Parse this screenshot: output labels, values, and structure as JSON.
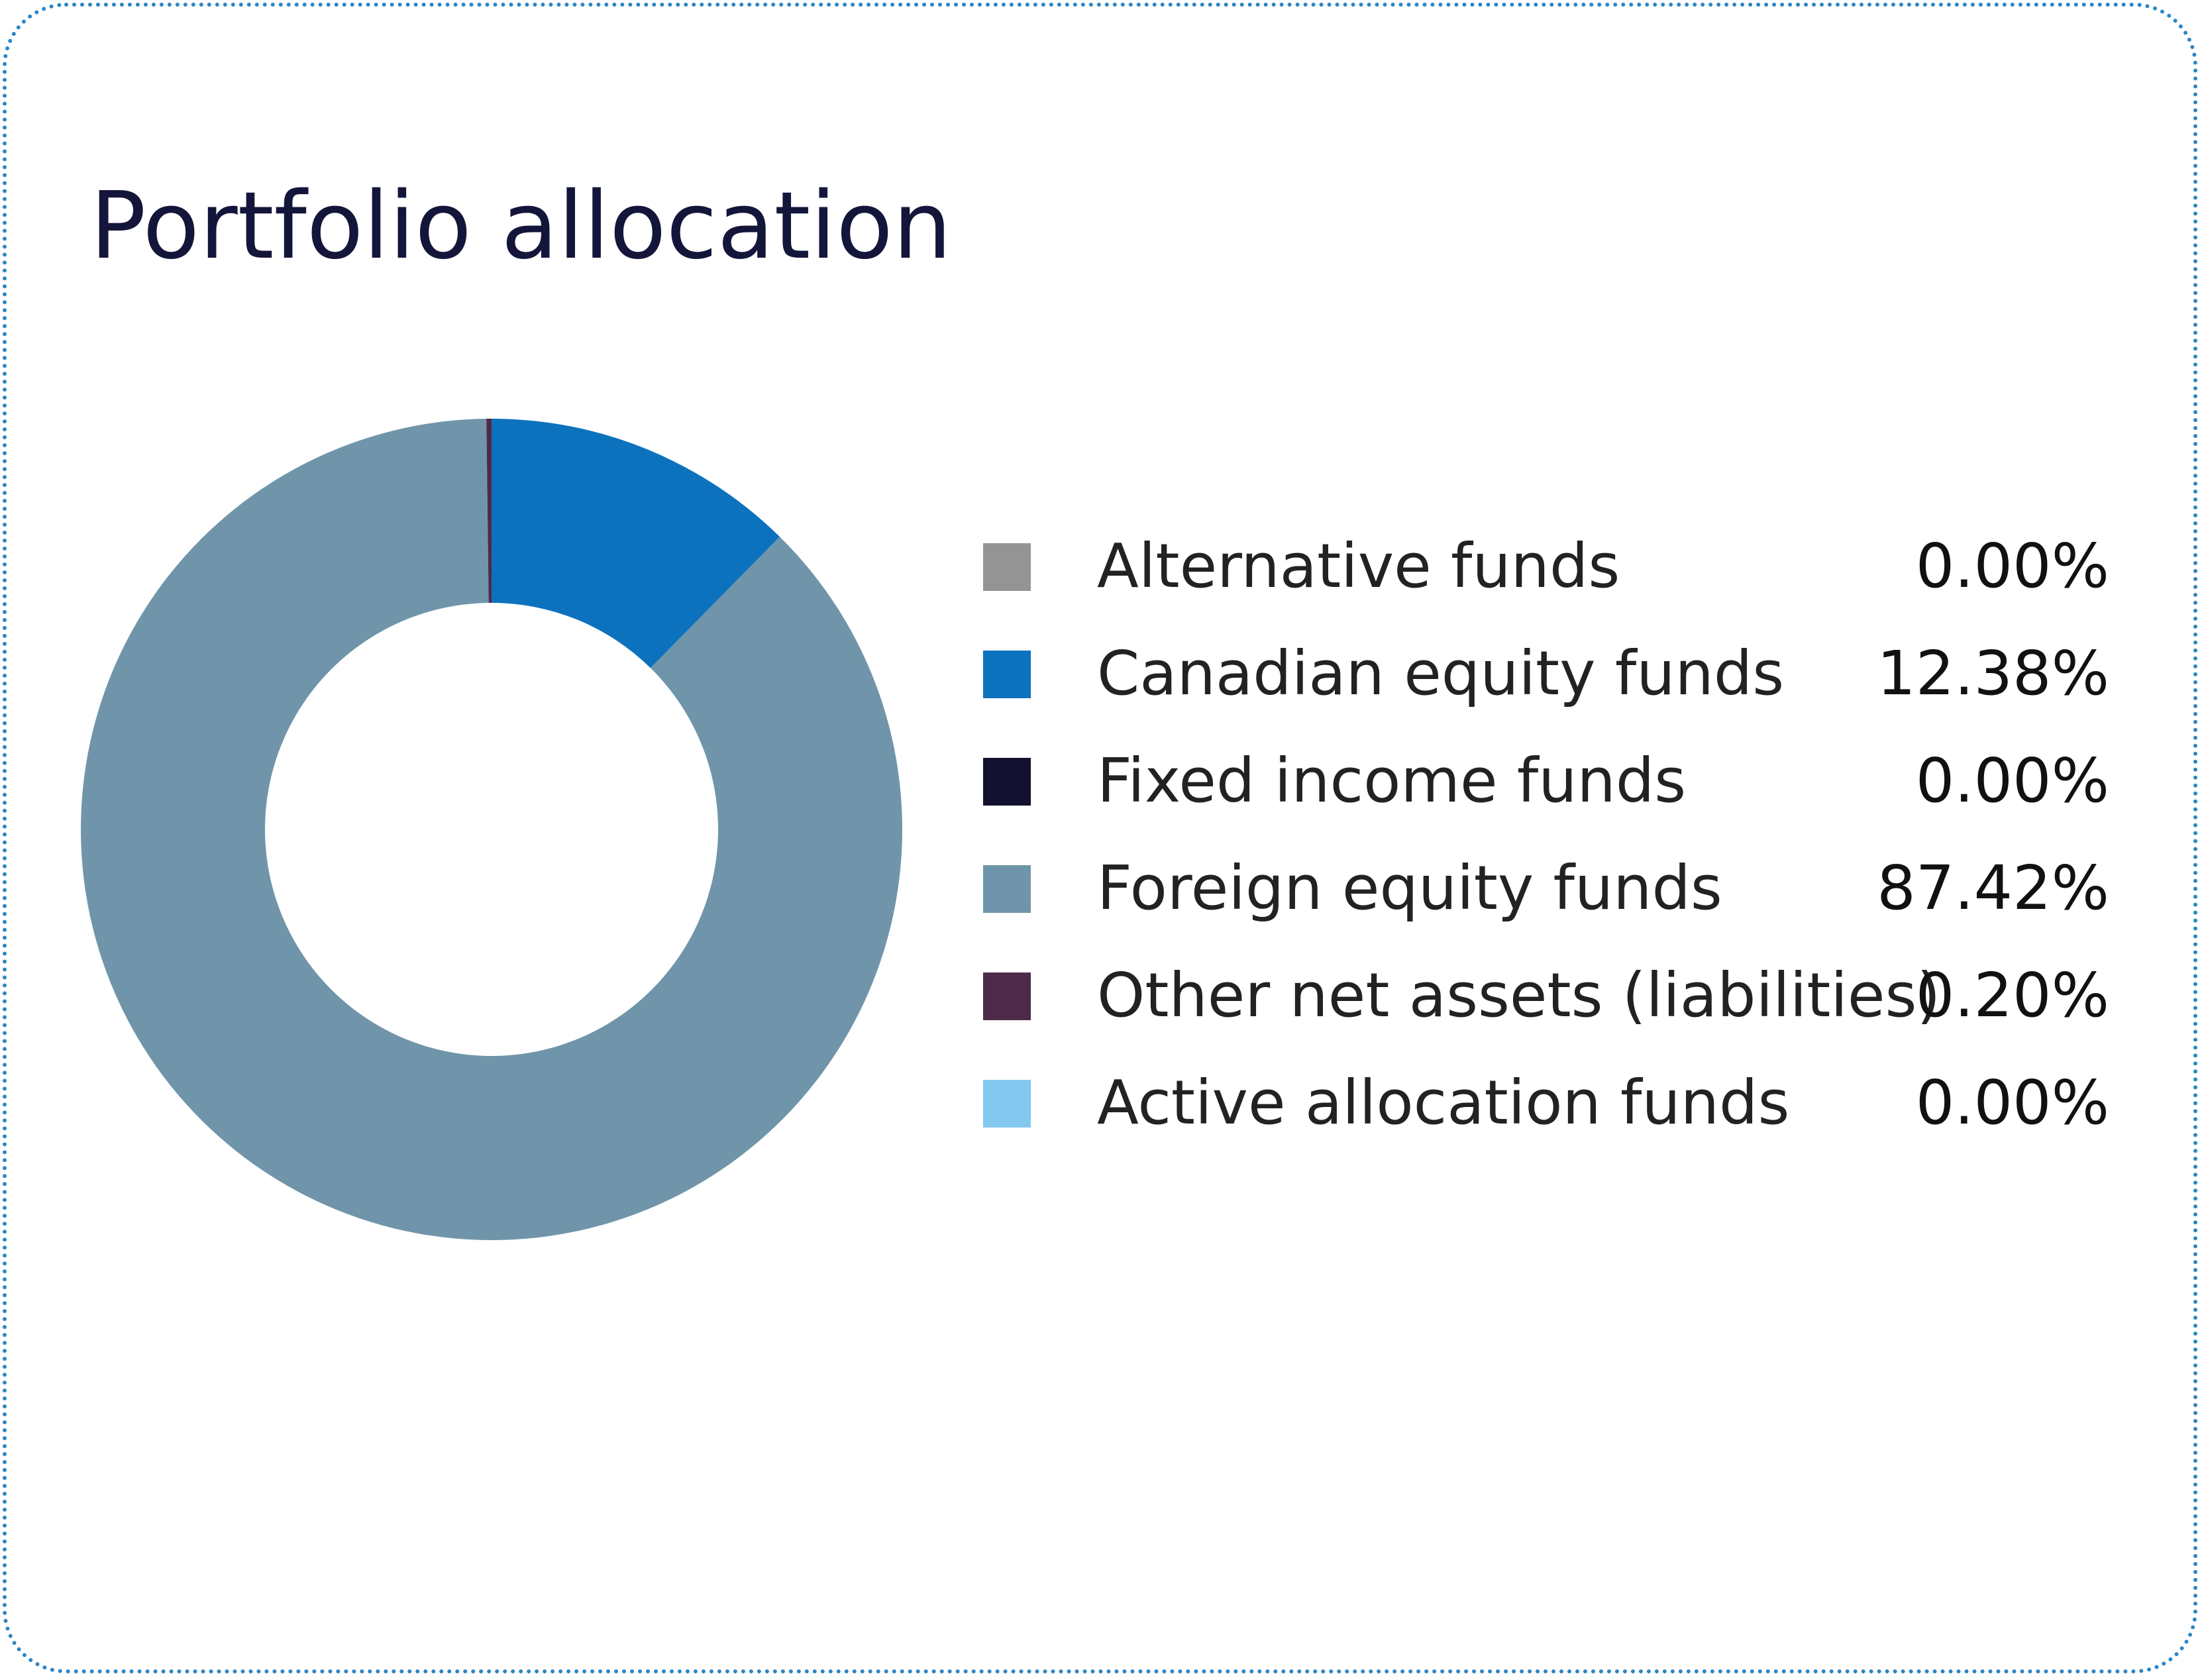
{
  "title": "Portfolio allocation",
  "chart_data": {
    "type": "pie",
    "title": "Portfolio allocation",
    "donut": true,
    "categories": [
      "Alternative funds",
      "Canadian equity funds",
      "Fixed income funds",
      "Foreign equity funds",
      "Other net assets (liabilities)",
      "Active allocation funds"
    ],
    "values": [
      0.0,
      12.38,
      0.0,
      87.42,
      0.2,
      0.0
    ],
    "value_labels": [
      "0.00%",
      "12.38%",
      "0.00%",
      "87.42%",
      "0.20%",
      "0.00%"
    ],
    "colors": [
      "#949494",
      "#0d72be",
      "#12112f",
      "#7095aa",
      "#4f2a48",
      "#83c8ef"
    ],
    "legend_position": "right"
  }
}
